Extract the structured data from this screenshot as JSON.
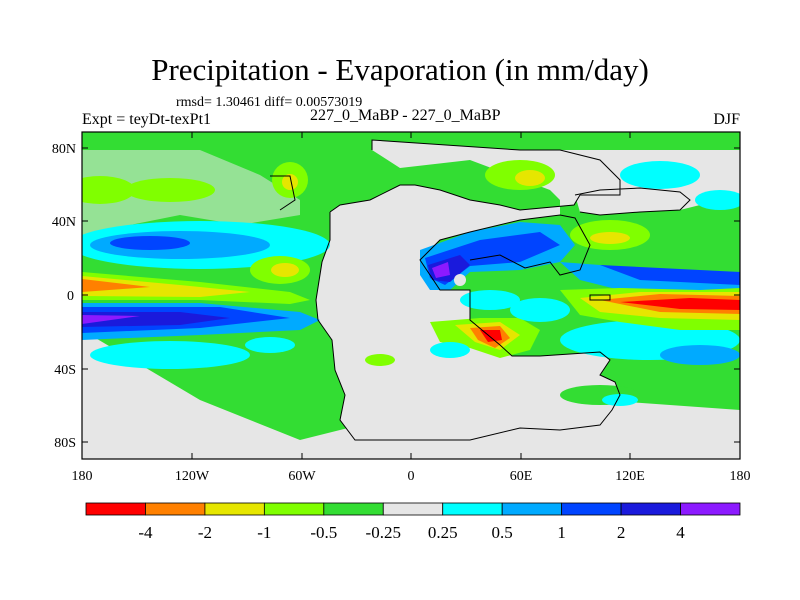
{
  "title": "Precipitation - Evaporation (in mm/day)",
  "stats": "rmsd= 1.30461 diff= 0.00573019",
  "experiment": "Expt = teyDt-texPt1",
  "subtitle": "227_0_MaBP - 227_0_MaBP",
  "season": "DJF",
  "y_ticks": [
    "80N",
    "40N",
    "0",
    "40S",
    "80S"
  ],
  "x_ticks": [
    "180",
    "120W",
    "60W",
    "0",
    "60E",
    "120E",
    "180"
  ],
  "colorbar": {
    "labels": [
      "-4",
      "-2",
      "-1",
      "-0.5",
      "-0.25",
      "0.25",
      "0.5",
      "1",
      "2",
      "4"
    ],
    "colors": [
      "#ff0000",
      "#ff8000",
      "#e6e600",
      "#80ff00",
      "#33dd33",
      "#e6e6e6",
      "#00ffff",
      "#00aaff",
      "#0044ff",
      "#1a1adc",
      "#8c1aff"
    ]
  },
  "colors": {
    "land": "#e6e6e6",
    "ocean_light": "#33dd33",
    "coast": "#000000"
  }
}
